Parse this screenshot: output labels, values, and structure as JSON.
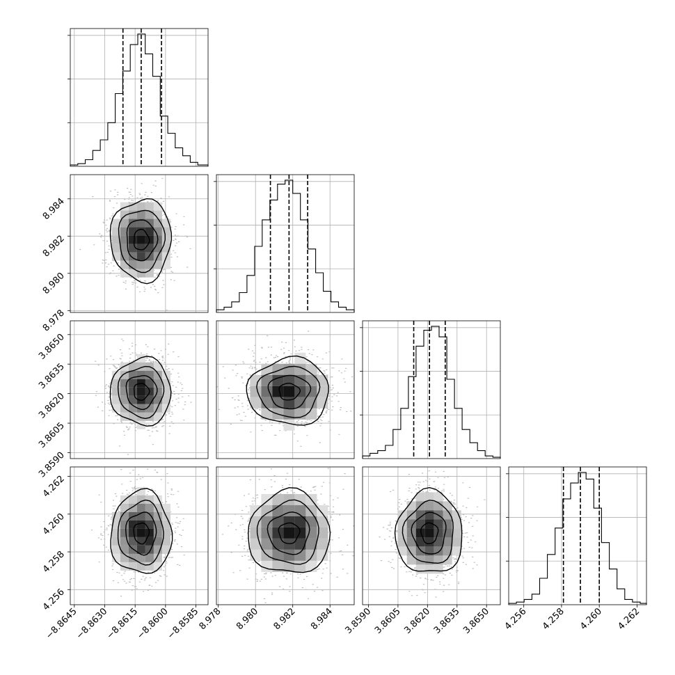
{
  "chart_data": {
    "type": "corner",
    "parameters": [
      {
        "ticks": [
          -8.8645,
          -8.863,
          -8.8615,
          -8.86,
          -8.8585
        ],
        "tick_labels": [
          "−8.8645",
          "−8.8630",
          "−8.8615",
          "−8.8600",
          "−8.8585"
        ],
        "range": [
          -8.8647,
          -8.8579
        ],
        "quantiles": [
          -8.8621,
          -8.8612,
          -8.8602
        ],
        "hist_yticks": [
          0.33,
          0.66,
          0.99
        ],
        "hist": {
          "edges": [
            -8.8647,
            -8.86433,
            -8.86396,
            -8.86359,
            -8.86322,
            -8.86285,
            -8.86248,
            -8.86211,
            -8.86174,
            -8.86137,
            -8.861,
            -8.86063,
            -8.86026,
            -8.85989,
            -8.85952,
            -8.85915,
            -8.85878,
            -8.85841,
            -8.8579
          ],
          "values": [
            0.01,
            0.02,
            0.05,
            0.12,
            0.2,
            0.33,
            0.55,
            0.72,
            0.92,
            1.0,
            0.85,
            0.68,
            0.38,
            0.25,
            0.14,
            0.08,
            0.03,
            0.01
          ]
        }
      },
      {
        "ticks": [
          8.978,
          8.98,
          8.982,
          8.984
        ],
        "tick_labels": [
          "8.978",
          "8.980",
          "8.982",
          "8.984"
        ],
        "range": [
          8.9779,
          8.9853
        ],
        "quantiles": [
          8.9808,
          8.9818,
          8.9828
        ],
        "hist_yticks": [
          0.33,
          0.66,
          0.99
        ],
        "hist": {
          "edges": [
            8.9779,
            8.97831,
            8.97872,
            8.97913,
            8.97954,
            8.97995,
            8.98036,
            8.98077,
            8.98118,
            8.98159,
            8.982,
            8.98241,
            8.98282,
            8.98323,
            8.98364,
            8.98405,
            8.98446,
            8.98487,
            8.9853
          ],
          "values": [
            0.02,
            0.04,
            0.08,
            0.15,
            0.28,
            0.5,
            0.7,
            0.85,
            0.97,
            1.0,
            0.9,
            0.7,
            0.48,
            0.3,
            0.16,
            0.08,
            0.04,
            0.02
          ]
        }
      },
      {
        "ticks": [
          3.859,
          3.8605,
          3.862,
          3.8635,
          3.865
        ],
        "tick_labels": [
          "3.8590",
          "3.8605",
          "3.8620",
          "3.8635",
          "3.8650"
        ],
        "range": [
          3.8587,
          3.8657
        ],
        "quantiles": [
          3.8613,
          3.8621,
          3.8629
        ],
        "hist_yticks": [
          0.33,
          0.66,
          0.99
        ],
        "hist": {
          "edges": [
            3.8587,
            3.85908,
            3.85947,
            3.85986,
            3.86025,
            3.86064,
            3.86103,
            3.86142,
            3.86181,
            3.8622,
            3.86259,
            3.86298,
            3.86337,
            3.86376,
            3.86415,
            3.86454,
            3.86493,
            3.86532,
            3.8657
          ],
          "values": [
            0.02,
            0.04,
            0.06,
            0.1,
            0.22,
            0.38,
            0.62,
            0.85,
            0.97,
            1.0,
            0.92,
            0.6,
            0.38,
            0.22,
            0.12,
            0.06,
            0.02,
            0.01
          ]
        }
      },
      {
        "ticks": [
          4.256,
          4.258,
          4.26,
          4.262
        ],
        "tick_labels": [
          "4.256",
          "4.258",
          "4.260",
          "4.262"
        ],
        "range": [
          4.2552,
          4.2625
        ],
        "quantiles": [
          4.2581,
          4.259,
          4.26
        ],
        "hist_yticks": [
          0.33,
          0.66,
          0.99
        ],
        "hist": {
          "edges": [
            4.2552,
            4.25561,
            4.25602,
            4.25643,
            4.25684,
            4.25725,
            4.25766,
            4.25807,
            4.25848,
            4.25889,
            4.2593,
            4.25971,
            4.26012,
            4.26053,
            4.26094,
            4.26135,
            4.26176,
            4.26217,
            4.2625
          ],
          "values": [
            0.01,
            0.02,
            0.04,
            0.08,
            0.2,
            0.38,
            0.58,
            0.8,
            0.92,
            1.0,
            0.95,
            0.73,
            0.47,
            0.27,
            0.12,
            0.04,
            0.02,
            0.01
          ]
        }
      }
    ],
    "pairs": [
      {
        "row": 1,
        "col": 0,
        "mean": [
          -8.8612,
          8.9818
        ],
        "sd": [
          0.00075,
          0.0011
        ]
      },
      {
        "row": 2,
        "col": 0,
        "mean": [
          -8.8612,
          3.8621
        ],
        "sd": [
          0.00075,
          0.00085
        ]
      },
      {
        "row": 2,
        "col": 1,
        "mean": [
          8.9818,
          3.8621
        ],
        "sd": [
          0.0011,
          0.00085
        ]
      },
      {
        "row": 3,
        "col": 0,
        "mean": [
          -8.8612,
          4.259
        ],
        "sd": [
          0.00075,
          0.0011
        ]
      },
      {
        "row": 3,
        "col": 1,
        "mean": [
          8.9818,
          4.259
        ],
        "sd": [
          0.0011,
          0.0011
        ]
      },
      {
        "row": 3,
        "col": 2,
        "mean": [
          3.8621,
          4.259
        ],
        "sd": [
          0.00085,
          0.0011
        ]
      }
    ],
    "contour_levels_sigma": [
      0.5,
      1.0,
      1.5,
      2.0
    ],
    "grid": true,
    "quantile_line_style": "dashed"
  }
}
